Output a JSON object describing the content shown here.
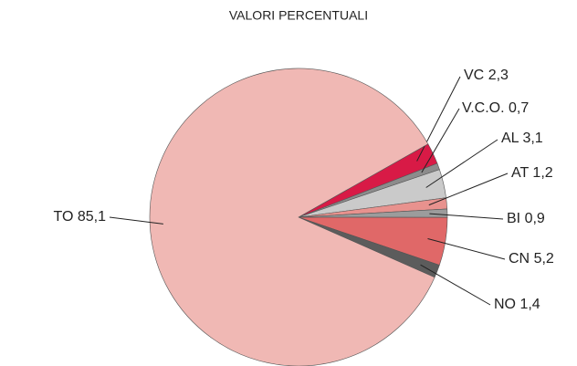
{
  "chart_data": {
    "type": "pie",
    "title": "VALORI PERCENTUALI",
    "categories": [
      "VC",
      "V.C.O.",
      "AL",
      "AT",
      "BI",
      "CN",
      "NO",
      "TO"
    ],
    "values": [
      2.3,
      0.7,
      3.1,
      1.2,
      0.9,
      5.2,
      1.4,
      85.1
    ],
    "value_labels": [
      "2,3",
      "0,7",
      "3,1",
      "1,2",
      "0,9",
      "5,2",
      "1,4",
      "85,1"
    ],
    "colors": [
      "#d81a46",
      "#8c8c8c",
      "#cacaca",
      "#e8928e",
      "#9c9c9c",
      "#e06868",
      "#5c5c5c",
      "#f0b8b4"
    ]
  }
}
